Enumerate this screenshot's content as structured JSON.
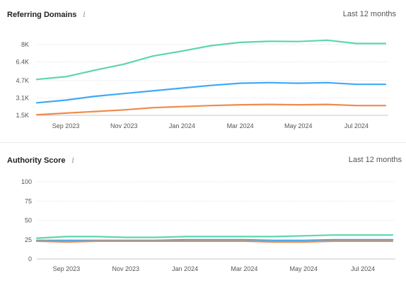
{
  "chart_data": [
    {
      "type": "line",
      "title": "Referring Domains",
      "period": "Last 12 months",
      "x": [
        "Aug 2023",
        "Sep 2023",
        "Oct 2023",
        "Nov 2023",
        "Dec 2023",
        "Jan 2024",
        "Feb 2024",
        "Mar 2024",
        "Apr 2024",
        "May 2024",
        "Jun 2024",
        "Jul 2024",
        "Aug 2024"
      ],
      "xticks": [
        "Sep 2023",
        "Nov 2023",
        "Jan 2024",
        "Mar 2024",
        "May 2024",
        "Jul 2024"
      ],
      "yticks": [
        {
          "v": 1500,
          "label": "1.5K"
        },
        {
          "v": 3100,
          "label": "3.1K"
        },
        {
          "v": 4700,
          "label": "4.7K"
        },
        {
          "v": 6400,
          "label": "6.4K"
        },
        {
          "v": 8000,
          "label": "8K"
        }
      ],
      "ylim": [
        1500,
        8000
      ],
      "grid": true,
      "series": [
        {
          "color": "#5ed7a8",
          "values": [
            4800,
            5050,
            5650,
            6200,
            6950,
            7400,
            7900,
            8200,
            8300,
            8280,
            8400,
            8100,
            8100
          ]
        },
        {
          "color": "#3fa9f5",
          "values": [
            2650,
            2900,
            3250,
            3500,
            3750,
            4000,
            4250,
            4450,
            4500,
            4450,
            4500,
            4350,
            4350
          ]
        },
        {
          "color": "#f08a4b",
          "values": [
            1550,
            1700,
            1850,
            2000,
            2200,
            2300,
            2400,
            2470,
            2500,
            2470,
            2500,
            2400,
            2400
          ]
        }
      ]
    },
    {
      "type": "line",
      "title": "Authority Score",
      "period": "Last 12 months",
      "x": [
        "Aug 2023",
        "Sep 2023",
        "Oct 2023",
        "Nov 2023",
        "Dec 2023",
        "Jan 2024",
        "Feb 2024",
        "Mar 2024",
        "Apr 2024",
        "May 2024",
        "Jun 2024",
        "Jul 2024",
        "Aug 2024"
      ],
      "xticks": [
        "Sep 2023",
        "Nov 2023",
        "Jan 2024",
        "Mar 2024",
        "May 2024",
        "Jul 2024"
      ],
      "yticks": [
        {
          "v": 0,
          "label": "0"
        },
        {
          "v": 25,
          "label": "25"
        },
        {
          "v": 50,
          "label": "50"
        },
        {
          "v": 75,
          "label": "75"
        },
        {
          "v": 100,
          "label": "100"
        }
      ],
      "ylim": [
        0,
        100
      ],
      "grid": true,
      "series": [
        {
          "color": "#5ed7a8",
          "values": [
            27,
            29,
            29,
            28,
            28,
            29,
            29,
            29,
            29,
            30,
            31,
            31,
            31
          ]
        },
        {
          "color": "#3fa9f5",
          "values": [
            24,
            24,
            24,
            24,
            24,
            25,
            25,
            25,
            24,
            24,
            25,
            25,
            25
          ]
        },
        {
          "color": "#f08a4b",
          "values": [
            23,
            22,
            23,
            23,
            23,
            23,
            23,
            23,
            22,
            22,
            23,
            23,
            23
          ]
        }
      ]
    }
  ]
}
